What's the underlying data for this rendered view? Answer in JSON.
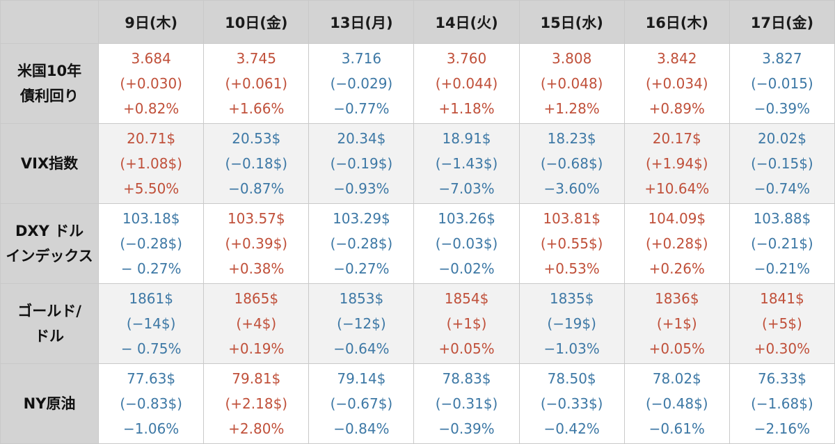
{
  "colors": {
    "up": "#c0503a",
    "down": "#3d78a5",
    "header_bg": "#d3d3d3"
  },
  "days": [
    "9日(木)",
    "10日(金)",
    "13日(月)",
    "14日(火)",
    "15日(水)",
    "16日(木)",
    "17日(金)"
  ],
  "rows": [
    {
      "label": [
        "米国10年",
        "債利回り"
      ],
      "cells": [
        {
          "dir": "up",
          "value": "3.684",
          "change": "(+0.030)",
          "pct": "+0.82%"
        },
        {
          "dir": "up",
          "value": "3.745",
          "change": "(+0.061)",
          "pct": "+1.66%"
        },
        {
          "dir": "down",
          "value": "3.716",
          "change": "(−0.029)",
          "pct": "−0.77%"
        },
        {
          "dir": "up",
          "value": "3.760",
          "change": "(+0.044)",
          "pct": "+1.18%"
        },
        {
          "dir": "up",
          "value": "3.808",
          "change": "(+0.048)",
          "pct": "+1.28%"
        },
        {
          "dir": "up",
          "value": "3.842",
          "change": "(+0.034)",
          "pct": "+0.89%"
        },
        {
          "dir": "down",
          "value": "3.827",
          "change": "(−0.015)",
          "pct": "−0.39%"
        }
      ]
    },
    {
      "label": [
        "VIX指数"
      ],
      "cells": [
        {
          "dir": "up",
          "value": "20.71$",
          "change": "(+1.08$)",
          "pct": "+5.50%"
        },
        {
          "dir": "down",
          "value": "20.53$",
          "change": "(−0.18$)",
          "pct": "−0.87%"
        },
        {
          "dir": "down",
          "value": "20.34$",
          "change": "(−0.19$)",
          "pct": "−0.93%"
        },
        {
          "dir": "down",
          "value": "18.91$",
          "change": "(−1.43$)",
          "pct": "−7.03%"
        },
        {
          "dir": "down",
          "value": "18.23$",
          "change": "(−0.68$)",
          "pct": "−3.60%"
        },
        {
          "dir": "up",
          "value": "20.17$",
          "change": "(+1.94$)",
          "pct": "+10.64%"
        },
        {
          "dir": "down",
          "value": "20.02$",
          "change": "(−0.15$)",
          "pct": "−0.74%"
        }
      ]
    },
    {
      "label": [
        "DXY ドル",
        "インデックス"
      ],
      "cells": [
        {
          "dir": "down",
          "value": "103.18$",
          "change": "(−0.28$)",
          "pct": "− 0.27%"
        },
        {
          "dir": "up",
          "value": "103.57$",
          "change": "(+0.39$)",
          "pct": "+0.38%"
        },
        {
          "dir": "down",
          "value": "103.29$",
          "change": "(−0.28$)",
          "pct": "−0.27%"
        },
        {
          "dir": "down",
          "value": "103.26$",
          "change": "(−0.03$)",
          "pct": "−0.02%"
        },
        {
          "dir": "up",
          "value": "103.81$",
          "change": "(+0.55$)",
          "pct": "+0.53%"
        },
        {
          "dir": "up",
          "value": "104.09$",
          "change": "(+0.28$)",
          "pct": "+0.26%"
        },
        {
          "dir": "down",
          "value": "103.88$",
          "change": "(−0.21$)",
          "pct": "−0.21%"
        }
      ]
    },
    {
      "label": [
        "ゴールド/",
        "ドル"
      ],
      "cells": [
        {
          "dir": "down",
          "value": "1861$",
          "change": "(−14$)",
          "pct": "− 0.75%"
        },
        {
          "dir": "up",
          "value": "1865$",
          "change": "(+4$)",
          "pct": "+0.19%"
        },
        {
          "dir": "down",
          "value": "1853$",
          "change": "(−12$)",
          "pct": "−0.64%"
        },
        {
          "dir": "up",
          "value": "1854$",
          "change": "(+1$)",
          "pct": "+0.05%"
        },
        {
          "dir": "down",
          "value": "1835$",
          "change": "(−19$)",
          "pct": "−1.03%"
        },
        {
          "dir": "up",
          "value": "1836$",
          "change": "(+1$)",
          "pct": "+0.05%"
        },
        {
          "dir": "up",
          "value": "1841$",
          "change": "(+5$)",
          "pct": "+0.30%"
        }
      ]
    },
    {
      "label": [
        "NY原油"
      ],
      "cells": [
        {
          "dir": "down",
          "value": "77.63$",
          "change": "(−0.83$)",
          "pct": "−1.06%"
        },
        {
          "dir": "up",
          "value": "79.81$",
          "change": "(+2.18$)",
          "pct": "+2.80%"
        },
        {
          "dir": "down",
          "value": "79.14$",
          "change": "(−0.67$)",
          "pct": "−0.84%"
        },
        {
          "dir": "down",
          "value": "78.83$",
          "change": "(−0.31$)",
          "pct": "−0.39%"
        },
        {
          "dir": "down",
          "value": "78.50$",
          "change": "(−0.33$)",
          "pct": "−0.42%"
        },
        {
          "dir": "down",
          "value": "78.02$",
          "change": "(−0.48$)",
          "pct": "−0.61%"
        },
        {
          "dir": "down",
          "value": "76.33$",
          "change": "(−1.68$)",
          "pct": "−2.16%"
        }
      ]
    }
  ]
}
